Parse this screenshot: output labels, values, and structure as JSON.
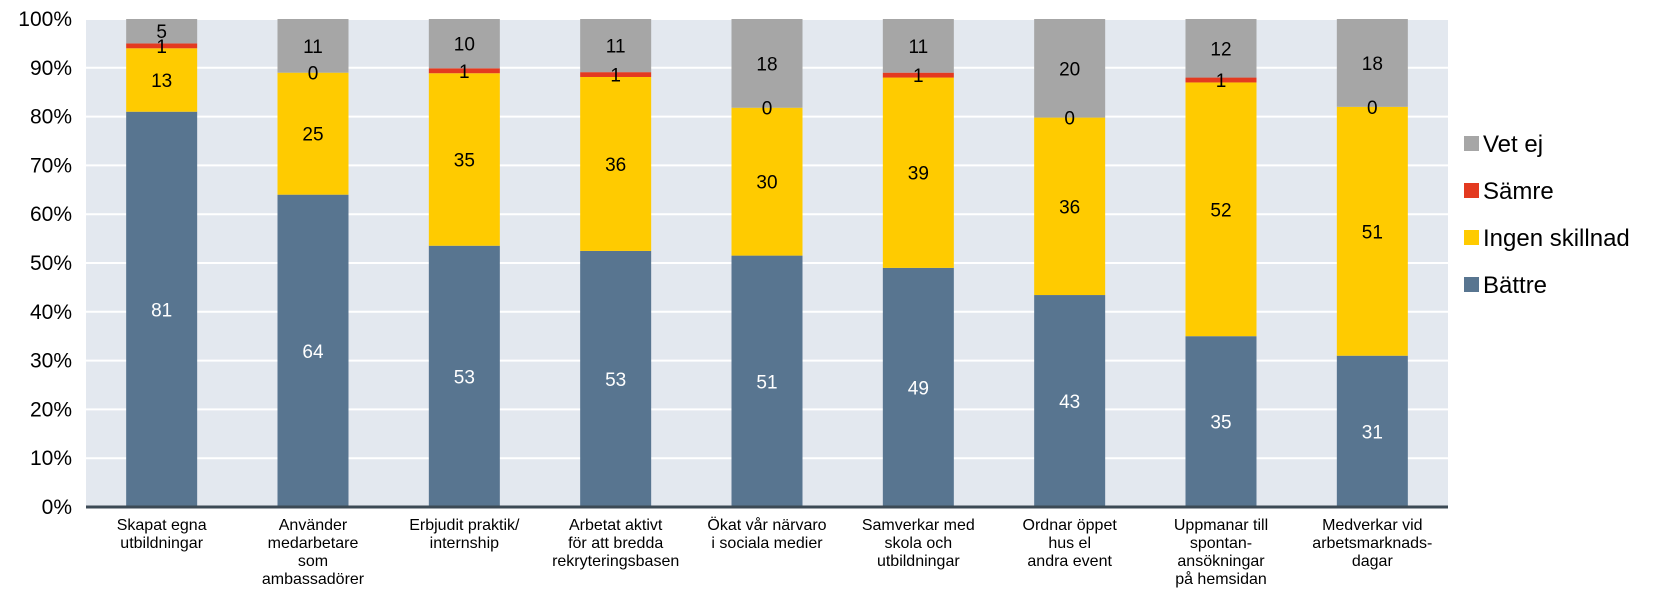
{
  "chart_data": {
    "type": "bar",
    "stacked": true,
    "percent_stacked": true,
    "categories": [
      [
        "Skapat egna",
        "utbildningar"
      ],
      [
        "Använder",
        "medarbetare",
        "som",
        "ambassadörer"
      ],
      [
        "Erbjudit praktik/",
        "internship"
      ],
      [
        "Arbetat aktivt",
        "för att bredda",
        "rekryteringsbasen"
      ],
      [
        "Ökat vår närvaro",
        "i sociala medier"
      ],
      [
        "Samverkar med",
        "skola och",
        "utbildningar"
      ],
      [
        "Ordnar öppet",
        "hus el",
        "andra event"
      ],
      [
        "Uppmanar till",
        "spontan-",
        "ansökningar",
        "på hemsidan"
      ],
      [
        "Medverkar vid",
        "arbetsmarknads-",
        "dagar"
      ]
    ],
    "series": [
      {
        "name": "Bättre",
        "color": "#587590",
        "label_color": "#ffffff",
        "values": [
          81,
          64,
          53,
          53,
          51,
          49,
          43,
          35,
          31
        ]
      },
      {
        "name": "Ingen skillnad",
        "color": "#ffcb00",
        "label_color": "#000000",
        "values": [
          13,
          25,
          35,
          36,
          30,
          39,
          36,
          52,
          51
        ]
      },
      {
        "name": "Sämre",
        "color": "#e33a20",
        "label_color": "#000000",
        "values": [
          1,
          0,
          1,
          1,
          0,
          1,
          0,
          1,
          0
        ]
      },
      {
        "name": "Vet ej",
        "color": "#a6a6a6",
        "label_color": "#000000",
        "values": [
          5,
          11,
          10,
          11,
          18,
          11,
          20,
          12,
          18
        ]
      }
    ],
    "y_ticks": [
      "0%",
      "10%",
      "20%",
      "30%",
      "40%",
      "50%",
      "60%",
      "70%",
      "80%",
      "90%",
      "100%"
    ],
    "ylim": [
      0,
      100
    ],
    "grid": true,
    "legend_position": "right",
    "legend_order": [
      "Vet ej",
      "Sämre",
      "Ingen skillnad",
      "Bättre"
    ],
    "plot_background": "#e3e8ef",
    "axis_color": "#3c4a55"
  }
}
